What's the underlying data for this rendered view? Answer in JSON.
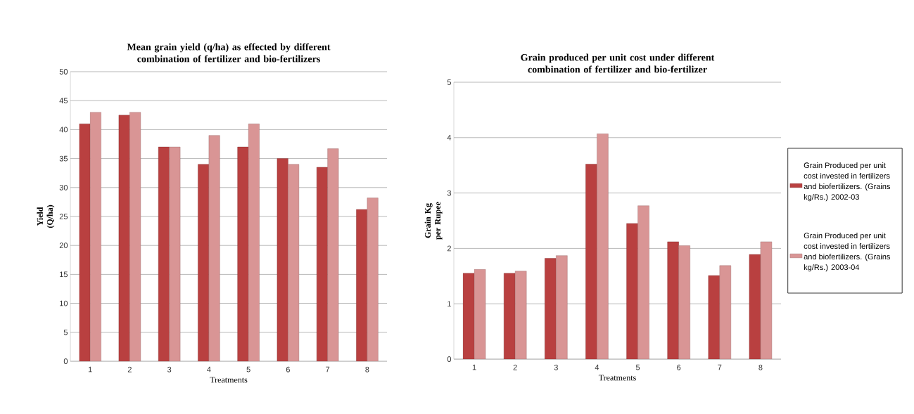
{
  "chart_data": [
    {
      "type": "bar",
      "title": "Mean grain yield (q/ha) as effected by different combination of fertilizer and bio-fertilizers",
      "xlabel": "Treatments",
      "ylabel": "Yield (Q/ha)",
      "categories": [
        "1",
        "2",
        "3",
        "4",
        "5",
        "6",
        "7",
        "8"
      ],
      "series": [
        {
          "color": "#b94040",
          "values": [
            41,
            42.5,
            37,
            34,
            37,
            35,
            33.5,
            26.2
          ]
        },
        {
          "color": "#d99595",
          "values": [
            43,
            43,
            37,
            39,
            41,
            34,
            36.7,
            28.2
          ]
        }
      ],
      "ylim": [
        0,
        50
      ],
      "yticks": [
        0,
        5,
        10,
        15,
        20,
        25,
        30,
        35,
        40,
        45,
        50
      ],
      "grid": "y"
    },
    {
      "type": "bar",
      "title": "Grain produced per unit cost under different combination of fertilizer and bio-fertilizer",
      "xlabel": "Treatments",
      "ylabel": "Grain Kg per Rupee",
      "categories": [
        "1",
        "2",
        "3",
        "4",
        "5",
        "6",
        "7",
        "8"
      ],
      "series": [
        {
          "name": "Grain Produced per unit cost invested in fertilizers and biofertilizers. (Grains kg/Rs.) 2002-03",
          "color": "#b94040",
          "values": [
            1.55,
            1.55,
            1.82,
            3.52,
            2.45,
            2.12,
            1.51,
            1.89
          ]
        },
        {
          "name": "Grain Produced per unit cost invested in fertilizers and biofertilizers. (Grains kg/Rs.) 2003-04",
          "color": "#d99595",
          "values": [
            1.62,
            1.59,
            1.87,
            4.07,
            2.77,
            2.05,
            1.69,
            2.12
          ]
        }
      ],
      "ylim": [
        0,
        5
      ],
      "yticks": [
        0,
        1,
        2,
        3,
        4,
        5
      ],
      "grid": "y",
      "legend": "right"
    }
  ]
}
